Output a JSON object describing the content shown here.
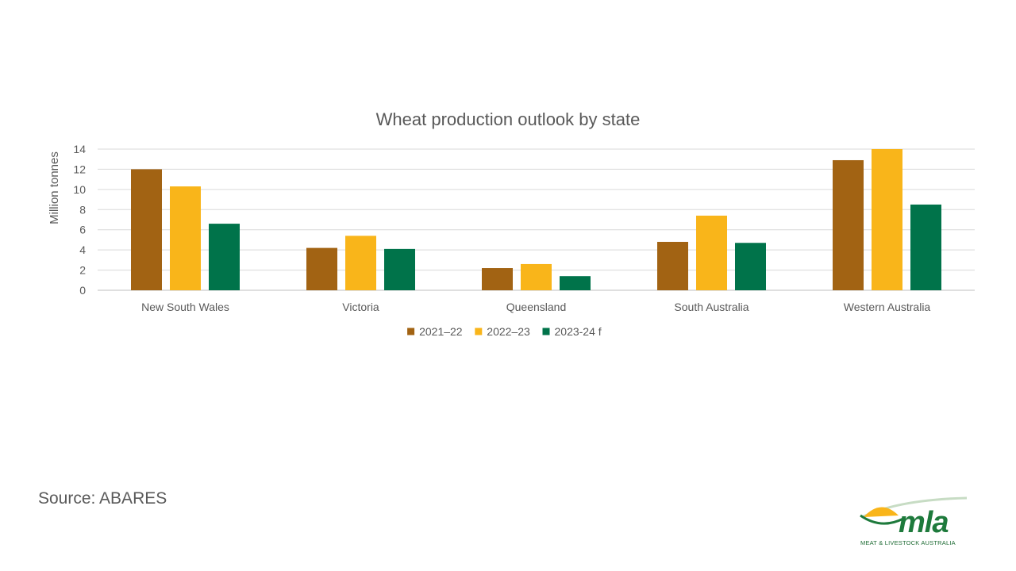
{
  "chart_data": {
    "type": "bar",
    "title": "Wheat production outlook by state",
    "ylabel": "Million tonnes",
    "xlabel": "",
    "ylim": [
      0,
      14
    ],
    "yticks": [
      0,
      2,
      4,
      6,
      8,
      10,
      12,
      14
    ],
    "grid": true,
    "legend_position": "bottom",
    "categories": [
      "New South Wales",
      "Victoria",
      "Queensland",
      "South Australia",
      "Western Australia"
    ],
    "series": [
      {
        "name": "2021–22",
        "color": "#a26313",
        "values": [
          12.0,
          4.2,
          2.2,
          4.8,
          12.9
        ]
      },
      {
        "name": "2022–23",
        "color": "#f9b51a",
        "values": [
          10.3,
          5.4,
          2.6,
          7.4,
          14.0
        ]
      },
      {
        "name": "2023-24 f",
        "color": "#00734a",
        "values": [
          6.6,
          4.1,
          1.4,
          4.7,
          8.5
        ]
      }
    ]
  },
  "source": "Source: ABARES",
  "logo": {
    "word": "mla",
    "tagline": "MEAT & LIVESTOCK AUSTRALIA",
    "colors": {
      "green": "#1e7a3c",
      "yellow": "#f9b51a",
      "light_green": "#c7dcc4"
    }
  }
}
